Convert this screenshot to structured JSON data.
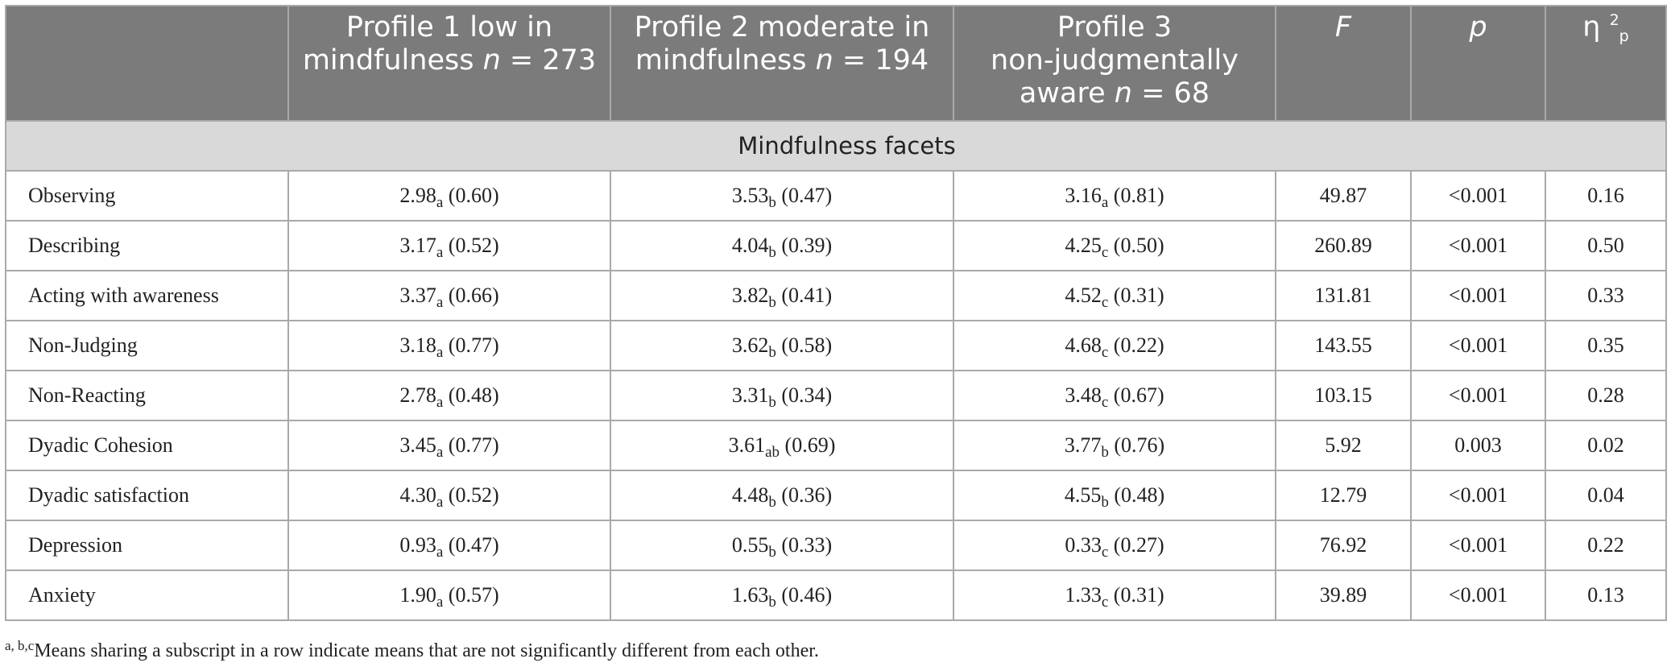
{
  "header": {
    "col0": "",
    "col1_line1": "Profile 1 low in",
    "col1_line2": "mindfulness",
    "col1_n": "n",
    "col1_eq": " = 273",
    "col2_line1": "Profile 2 moderate in",
    "col2_line2": "mindfulness",
    "col2_n": "n",
    "col2_eq": " = 194",
    "col3_line1": "Profile 3",
    "col3_line2": "non-judgmentally",
    "col3_line3": "aware",
    "col3_n": "n",
    "col3_eq": " = 68",
    "col4": "F",
    "col5": "p",
    "col6_base": "η",
    "col6_sup": "2",
    "col6_sub": "p"
  },
  "section": "Mindfulness facets",
  "rows": [
    {
      "label": "Observing",
      "m1": "2.98",
      "s1": "a",
      "sd1": " (0.60)",
      "m2": "3.53",
      "s2": "b",
      "sd2": " (0.47)",
      "m3": "3.16",
      "s3": "a",
      "sd3": " (0.81)",
      "f": "49.87",
      "p": "<0.001",
      "eta": "0.16"
    },
    {
      "label": "Describing",
      "m1": "3.17",
      "s1": "a",
      "sd1": " (0.52)",
      "m2": "4.04",
      "s2": "b",
      "sd2": " (0.39)",
      "m3": "4.25",
      "s3": "c",
      "sd3": " (0.50)",
      "f": "260.89",
      "p": "<0.001",
      "eta": "0.50"
    },
    {
      "label": "Acting with awareness",
      "m1": "3.37",
      "s1": "a",
      "sd1": " (0.66)",
      "m2": "3.82",
      "s2": "b",
      "sd2": " (0.41)",
      "m3": "4.52",
      "s3": "c",
      "sd3": " (0.31)",
      "f": "131.81",
      "p": "<0.001",
      "eta": "0.33"
    },
    {
      "label": "Non-Judging",
      "m1": "3.18",
      "s1": "a",
      "sd1": " (0.77)",
      "m2": "3.62",
      "s2": "b",
      "sd2": " (0.58)",
      "m3": "4.68",
      "s3": "c",
      "sd3": " (0.22)",
      "f": "143.55",
      "p": "<0.001",
      "eta": "0.35"
    },
    {
      "label": "Non-Reacting",
      "m1": "2.78",
      "s1": "a",
      "sd1": " (0.48)",
      "m2": "3.31",
      "s2": "b",
      "sd2": " (0.34)",
      "m3": "3.48",
      "s3": "c",
      "sd3": " (0.67)",
      "f": "103.15",
      "p": "<0.001",
      "eta": "0.28"
    },
    {
      "label": "Dyadic Cohesion",
      "m1": "3.45",
      "s1": "a",
      "sd1": " (0.77)",
      "m2": "3.61",
      "s2": "ab",
      "sd2": " (0.69)",
      "m3": "3.77",
      "s3": "b",
      "sd3": " (0.76)",
      "f": "5.92",
      "p": "0.003",
      "eta": "0.02"
    },
    {
      "label": "Dyadic satisfaction",
      "m1": "4.30",
      "s1": "a",
      "sd1": " (0.52)",
      "m2": "4.48",
      "s2": "b",
      "sd2": " (0.36)",
      "m3": "4.55",
      "s3": "b",
      "sd3": " (0.48)",
      "f": "12.79",
      "p": "<0.001",
      "eta": "0.04"
    },
    {
      "label": "Depression",
      "m1": "0.93",
      "s1": "a",
      "sd1": " (0.47)",
      "m2": "0.55",
      "s2": "b",
      "sd2": " (0.33)",
      "m3": "0.33",
      "s3": "c",
      "sd3": " (0.27)",
      "f": "76.92",
      "p": "<0.001",
      "eta": "0.22"
    },
    {
      "label": "Anxiety",
      "m1": "1.90",
      "s1": "a",
      "sd1": " (0.57)",
      "m2": "1.63",
      "s2": "b",
      "sd2": " (0.46)",
      "m3": "1.33",
      "s3": "c",
      "sd3": " (0.31)",
      "f": "39.89",
      "p": "<0.001",
      "eta": "0.13"
    }
  ],
  "footnote": {
    "sup1": "a,",
    "sup2": " b,c",
    "text": "Means sharing a subscript in a row indicate means that are not significantly different from each other."
  },
  "colors": {
    "header_bg": "#7b7b7b",
    "section_bg": "#d9d9d9",
    "border": "#a9a9a9"
  }
}
